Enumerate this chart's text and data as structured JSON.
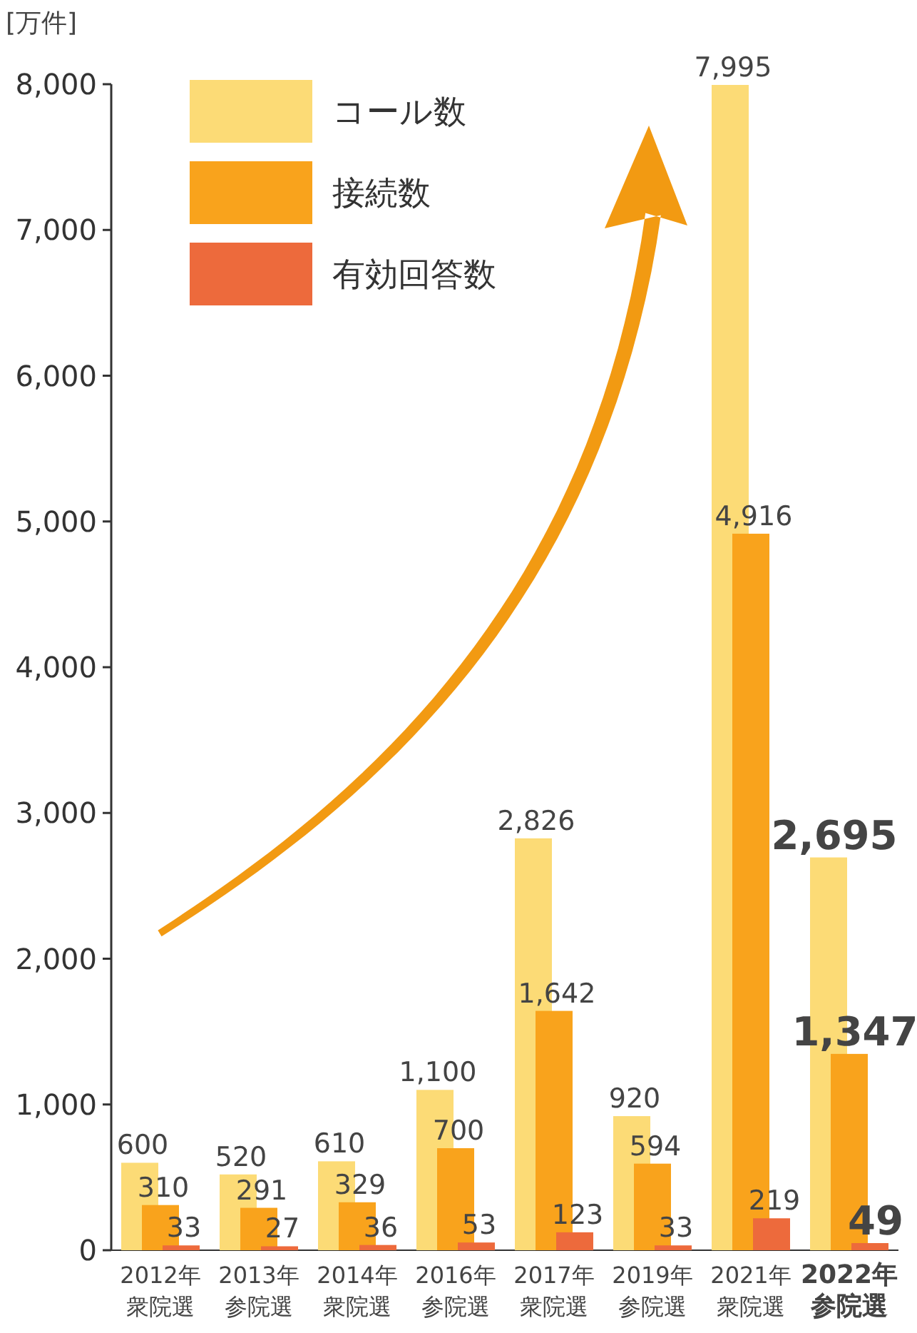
{
  "chart_data": {
    "type": "bar",
    "ylabel": "[万件]",
    "categories": [
      "2012年衆院選",
      "2013年参院選",
      "2014年衆院選",
      "2016年参院選",
      "2017年衆院選",
      "2019年参院選",
      "2021年衆院選",
      "**2022年参院選**"
    ],
    "series": [
      {
        "name": "コール数",
        "color": "#fcdb76",
        "values": [
          600,
          520,
          610,
          1100,
          2826,
          920,
          7995,
          2695
        ],
        "value_labels": [
          "600",
          "520",
          "610",
          "1,100",
          "2,826",
          "920",
          "7,995",
          "**2,695**"
        ]
      },
      {
        "name": "接続数",
        "color": "#f9a31c",
        "values": [
          310,
          291,
          329,
          700,
          1642,
          594,
          4916,
          1347
        ],
        "value_labels": [
          "310",
          "291",
          "329",
          "700",
          "1,642",
          "594",
          "4,916",
          "**1,347**"
        ]
      },
      {
        "name": "有効回答数",
        "color": "#ed6a3c",
        "values": [
          33,
          27,
          36,
          53,
          123,
          33,
          219,
          49
        ],
        "value_labels": [
          "33",
          "27",
          "36",
          "53",
          "123",
          "33",
          "219",
          "**49**"
        ]
      }
    ],
    "ylim": [
      0,
      8000
    ],
    "yticks": [
      {
        "value": 0,
        "label": "0"
      },
      {
        "value": 1000,
        "label": "1,000"
      },
      {
        "value": 2000,
        "label": "2,000"
      },
      {
        "value": 3000,
        "label": "3,000"
      },
      {
        "value": 4000,
        "label": "4,000"
      },
      {
        "value": 5000,
        "label": "5,000"
      },
      {
        "value": 6000,
        "label": "6,000"
      },
      {
        "value": 7000,
        "label": "7,000"
      },
      {
        "value": 8000,
        "label": "8,000"
      }
    ],
    "legend": "top left",
    "grid": false
  }
}
